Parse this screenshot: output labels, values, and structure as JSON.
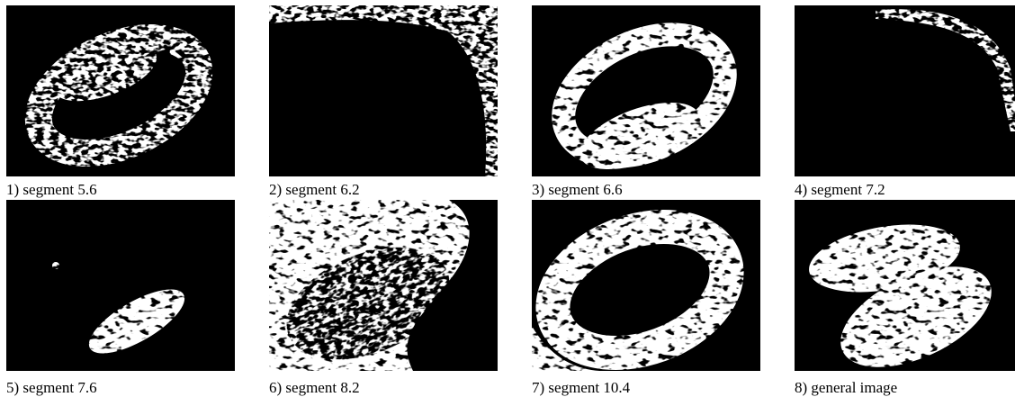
{
  "panels": [
    {
      "caption": "1) segment 5.6"
    },
    {
      "caption": "2) segment 6.2"
    },
    {
      "caption": "3) segment 6.6"
    },
    {
      "caption": "4) segment 7.2"
    },
    {
      "caption": "5) segment 7.6"
    },
    {
      "caption": "6) segment 8.2"
    },
    {
      "caption": "7) segment 10.4"
    },
    {
      "caption": "8) general image"
    }
  ]
}
